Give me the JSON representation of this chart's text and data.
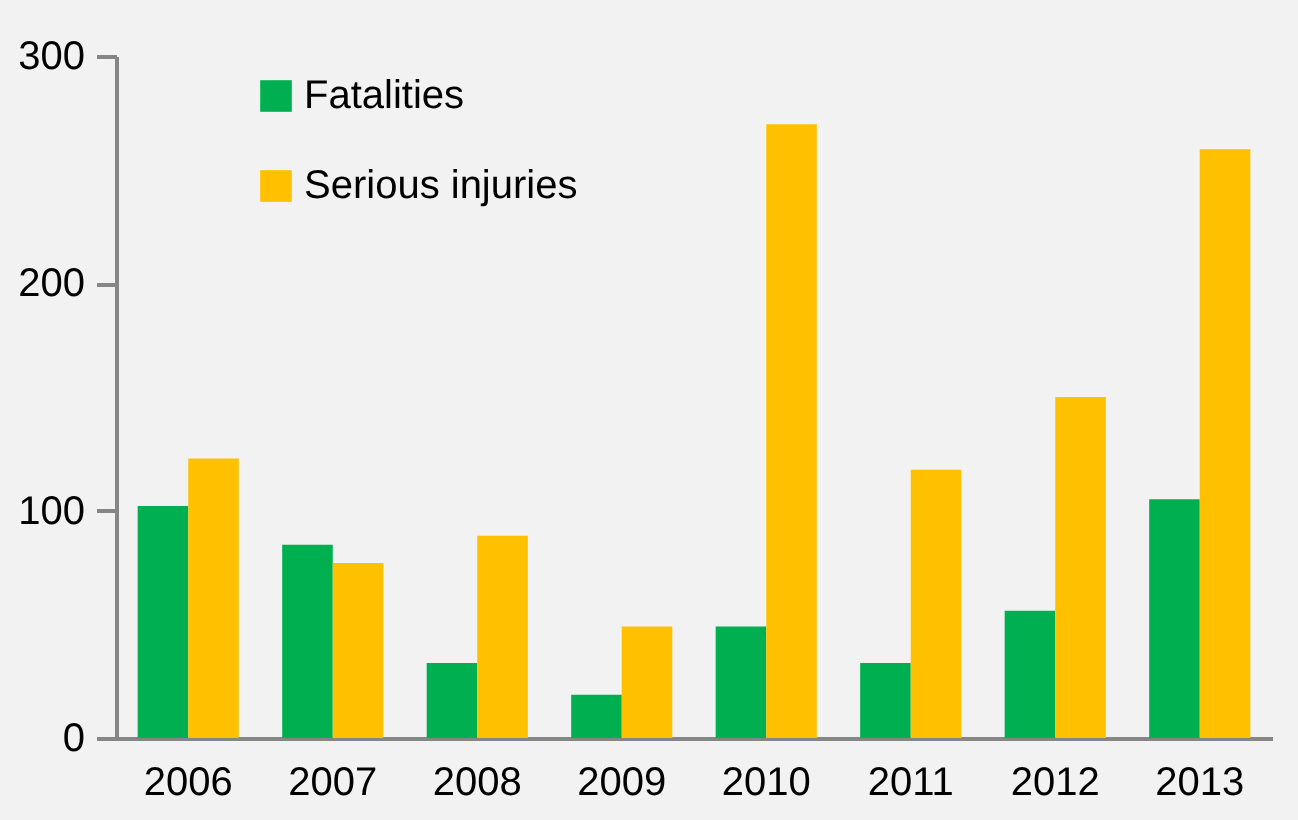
{
  "chart_data": {
    "type": "bar",
    "categories": [
      "2006",
      "2007",
      "2008",
      "2009",
      "2010",
      "2011",
      "2012",
      "2013"
    ],
    "series": [
      {
        "name": "Fatalities",
        "color": "#00b050",
        "values": [
          102,
          85,
          33,
          19,
          49,
          33,
          56,
          105
        ]
      },
      {
        "name": "Serious injuries",
        "color": "#ffc000",
        "values": [
          123,
          77,
          89,
          49,
          270,
          118,
          150,
          259
        ]
      }
    ],
    "ylim": [
      0,
      300
    ],
    "yticks": [
      0,
      100,
      200,
      300
    ],
    "grid": false,
    "legend": "top left"
  }
}
